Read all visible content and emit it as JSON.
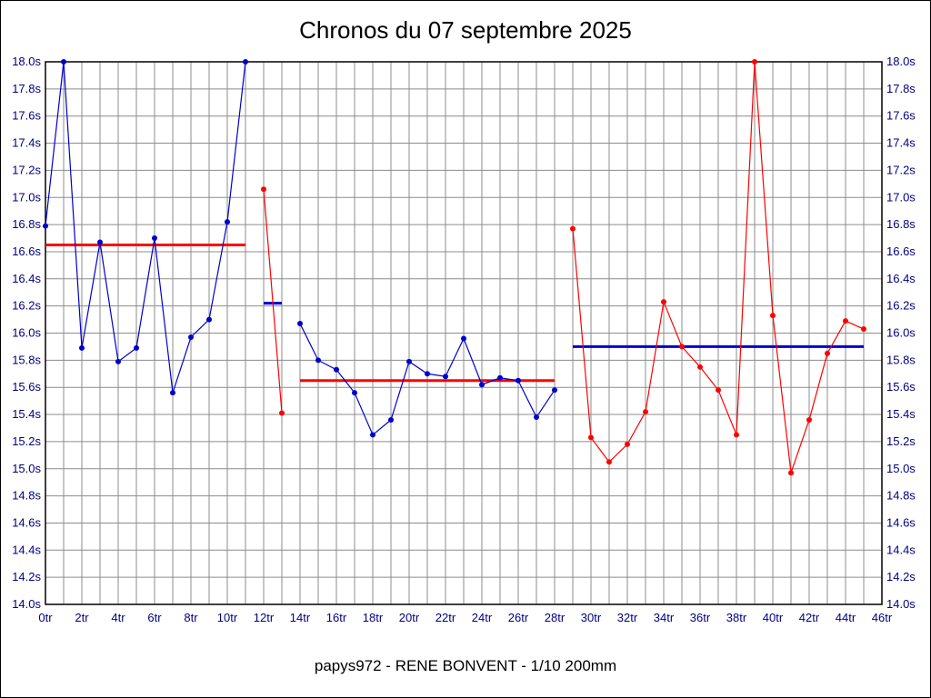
{
  "title": "Chronos du 07 septembre 2025",
  "footer": "papys972 - RENE BONVENT - 1/10 200mm",
  "colors": {
    "background": "#ffffff",
    "border": "#000000",
    "grid": "#8c8c8c",
    "axis_text": "#000080",
    "title_text": "#000000",
    "footer_text": "#000000",
    "blue_series": "#0000cc",
    "red_series": "#ff0000"
  },
  "chart_data": {
    "type": "line",
    "title": "Chronos du 07 septembre 2025",
    "xlabel": "",
    "ylabel": "",
    "xlim": [
      0,
      46
    ],
    "ylim": [
      14.0,
      18.0
    ],
    "x_tick_step": 2,
    "x_minor_step": 1,
    "y_tick_step": 0.2,
    "grid": true,
    "x_tick_labels": [
      "0tr",
      "2tr",
      "4tr",
      "6tr",
      "8tr",
      "10tr",
      "12tr",
      "14tr",
      "16tr",
      "18tr",
      "20tr",
      "22tr",
      "24tr",
      "26tr",
      "28tr",
      "30tr",
      "32tr",
      "34tr",
      "36tr",
      "38tr",
      "40tr",
      "42tr",
      "44tr",
      "46tr"
    ],
    "y_tick_labels": [
      "18.0s",
      "17.8s",
      "17.6s",
      "17.4s",
      "17.2s",
      "17.0s",
      "16.8s",
      "16.6s",
      "16.4s",
      "16.2s",
      "16.0s",
      "15.8s",
      "15.6s",
      "15.4s",
      "15.2s",
      "15.0s",
      "14.8s",
      "14.6s",
      "14.4s",
      "14.2s",
      "14.0s"
    ],
    "series": [
      {
        "name": "run-1-blue",
        "color": "#0000cc",
        "points": [
          [
            0,
            16.79
          ],
          [
            1,
            18.0
          ],
          [
            2,
            15.89
          ],
          [
            3,
            16.67
          ],
          [
            4,
            15.79
          ],
          [
            5,
            15.89
          ],
          [
            6,
            16.7
          ],
          [
            7,
            15.56
          ],
          [
            8,
            15.97
          ],
          [
            9,
            16.1
          ],
          [
            10,
            16.82
          ],
          [
            11,
            18.0
          ]
        ]
      },
      {
        "name": "run-2-red",
        "color": "#ff0000",
        "points": [
          [
            12,
            17.06
          ],
          [
            13,
            15.41
          ]
        ]
      },
      {
        "name": "run-3-blue",
        "color": "#0000cc",
        "points": [
          [
            14,
            16.07
          ],
          [
            15,
            15.8
          ],
          [
            16,
            15.73
          ],
          [
            17,
            15.56
          ],
          [
            18,
            15.25
          ],
          [
            19,
            15.36
          ],
          [
            20,
            15.79
          ],
          [
            21,
            15.7
          ],
          [
            22,
            15.68
          ],
          [
            23,
            15.96
          ],
          [
            24,
            15.62
          ],
          [
            25,
            15.67
          ],
          [
            26,
            15.65
          ],
          [
            27,
            15.38
          ],
          [
            28,
            15.58
          ]
        ]
      },
      {
        "name": "run-4-red",
        "color": "#ff0000",
        "points": [
          [
            29,
            16.77
          ],
          [
            30,
            15.23
          ],
          [
            31,
            15.05
          ],
          [
            32,
            15.18
          ],
          [
            33,
            15.42
          ],
          [
            34,
            16.23
          ],
          [
            35,
            15.9
          ],
          [
            36,
            15.75
          ],
          [
            37,
            15.58
          ],
          [
            38,
            15.25
          ],
          [
            39,
            18.0
          ],
          [
            40,
            16.13
          ],
          [
            41,
            14.97
          ],
          [
            42,
            15.36
          ],
          [
            43,
            15.85
          ],
          [
            44,
            16.09
          ],
          [
            45,
            16.03
          ]
        ]
      }
    ],
    "average_lines": [
      {
        "name": "average-run-1",
        "color": "#ff0000",
        "y": 16.65,
        "x_start": 0,
        "x_end": 11
      },
      {
        "name": "average-run-2",
        "color": "#0000cc",
        "y": 16.22,
        "x_start": 12,
        "x_end": 13
      },
      {
        "name": "average-run-3",
        "color": "#ff0000",
        "y": 15.65,
        "x_start": 14,
        "x_end": 28
      },
      {
        "name": "average-run-4",
        "color": "#0000cc",
        "y": 15.9,
        "x_start": 29,
        "x_end": 45
      }
    ]
  }
}
